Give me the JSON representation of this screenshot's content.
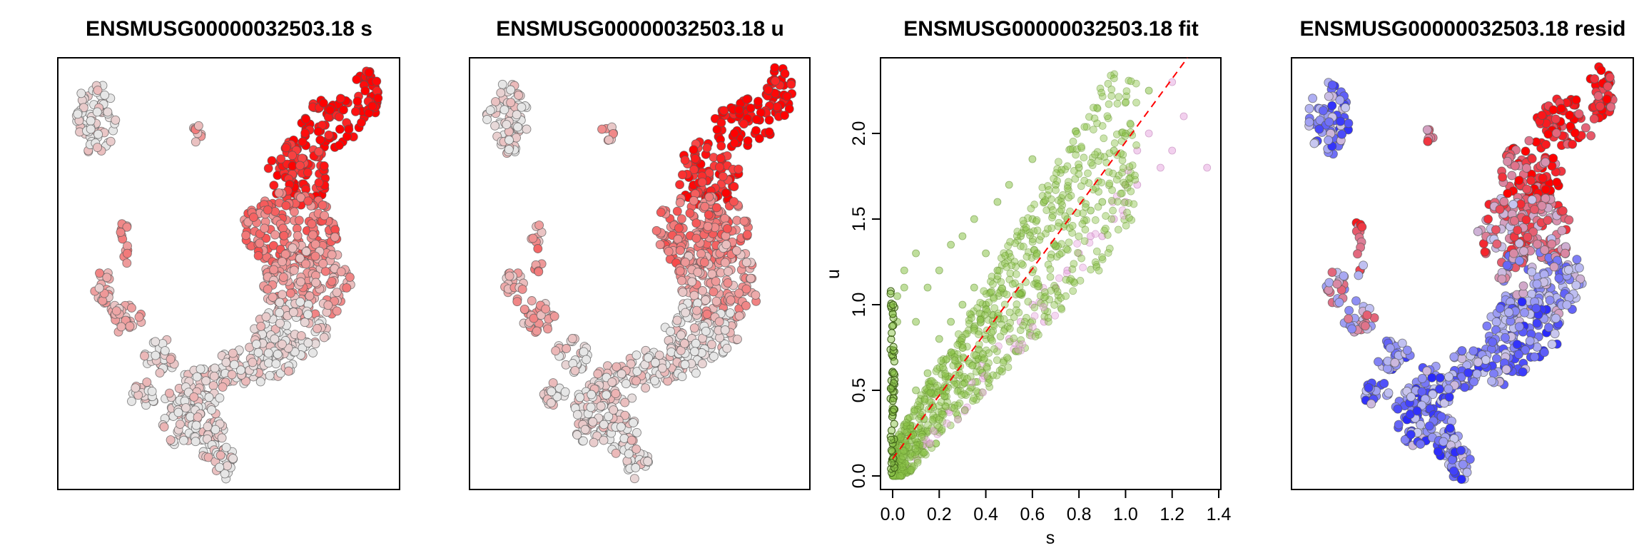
{
  "chart_data": [
    {
      "type": "scatter",
      "title": "ENSMUSG00000032503.18 s",
      "xlabel": "",
      "ylabel": "",
      "axes_shown": false,
      "color_scale": {
        "low": "#e6e6e6",
        "high": "#ff0000"
      },
      "note": "UMAP embedding colored by spliced expression; high expression in upper-right cluster"
    },
    {
      "type": "scatter",
      "title": "ENSMUSG00000032503.18 u",
      "xlabel": "",
      "ylabel": "",
      "axes_shown": false,
      "color_scale": {
        "low": "#e6e6e6",
        "high": "#ff0000"
      },
      "note": "UMAP embedding colored by unspliced expression; high expression in upper-right cluster"
    },
    {
      "type": "scatter",
      "title": "ENSMUSG00000032503.18 fit",
      "xlabel": "s",
      "ylabel": "u",
      "xlim": [
        -0.05,
        1.4
      ],
      "ylim": [
        -0.05,
        2.45
      ],
      "xticks": [
        "0.0",
        "0.2",
        "0.4",
        "0.6",
        "0.8",
        "1.0",
        "1.2",
        "1.4"
      ],
      "yticks": [
        "0.0",
        "0.5",
        "1.0",
        "1.5",
        "2.0"
      ],
      "colors": {
        "above_fit": "#8bc34a",
        "below_fit": "#e8a9e0",
        "fit_line": "#ff0000"
      },
      "fit_line": {
        "intercept": 0.1,
        "slope": 1.85
      },
      "series": [
        {
          "group": "above_fit",
          "points": [
            [
              0.0,
              0.1
            ],
            [
              0.0,
              0.4
            ],
            [
              0.0,
              0.7
            ],
            [
              0.0,
              0.95
            ],
            [
              0.02,
              1.05
            ],
            [
              0.02,
              0.9
            ],
            [
              0.05,
              0.3
            ],
            [
              0.05,
              1.1
            ],
            [
              0.05,
              1.2
            ],
            [
              0.1,
              0.5
            ],
            [
              0.1,
              0.9
            ],
            [
              0.1,
              1.3
            ],
            [
              0.15,
              0.6
            ],
            [
              0.15,
              1.1
            ],
            [
              0.2,
              0.8
            ],
            [
              0.2,
              1.2
            ],
            [
              0.25,
              0.9
            ],
            [
              0.25,
              1.35
            ],
            [
              0.3,
              1.0
            ],
            [
              0.3,
              1.4
            ],
            [
              0.35,
              1.1
            ],
            [
              0.35,
              1.5
            ],
            [
              0.4,
              1.0
            ],
            [
              0.4,
              1.3
            ],
            [
              0.45,
              1.2
            ],
            [
              0.45,
              1.6
            ],
            [
              0.5,
              1.3
            ],
            [
              0.5,
              1.7
            ],
            [
              0.55,
              1.4
            ],
            [
              0.6,
              1.5
            ],
            [
              0.6,
              1.85
            ],
            [
              0.65,
              1.6
            ],
            [
              0.7,
              1.7
            ],
            [
              0.75,
              1.5
            ],
            [
              0.8,
              1.8
            ],
            [
              0.85,
              1.55
            ],
            [
              0.9,
              1.6
            ],
            [
              0.95,
              1.9
            ],
            [
              1.0,
              2.0
            ],
            [
              1.1,
              2.25
            ]
          ]
        },
        {
          "group": "below_fit",
          "points": [
            [
              0.5,
              0.8
            ],
            [
              0.55,
              0.9
            ],
            [
              0.6,
              1.0
            ],
            [
              0.65,
              0.9
            ],
            [
              0.7,
              1.1
            ],
            [
              0.75,
              1.2
            ],
            [
              0.8,
              1.3
            ],
            [
              0.85,
              1.4
            ],
            [
              0.9,
              1.4
            ],
            [
              0.95,
              1.5
            ],
            [
              1.0,
              1.6
            ],
            [
              1.0,
              1.7
            ],
            [
              1.05,
              1.7
            ],
            [
              1.05,
              1.9
            ],
            [
              1.1,
              2.0
            ],
            [
              1.15,
              1.8
            ],
            [
              1.2,
              2.3
            ],
            [
              1.2,
              1.9
            ],
            [
              1.25,
              2.1
            ],
            [
              1.35,
              1.8
            ]
          ]
        }
      ]
    },
    {
      "type": "scatter",
      "title": "ENSMUSG00000032503.18 resid",
      "xlabel": "",
      "ylabel": "",
      "axes_shown": false,
      "color_scale": {
        "negative": "#0000ff",
        "mid": "#c8c8f0",
        "positive": "#ff0000"
      },
      "note": "UMAP embedding colored by residuals; positive residuals in upper-right, negative in left/lower arms"
    }
  ]
}
